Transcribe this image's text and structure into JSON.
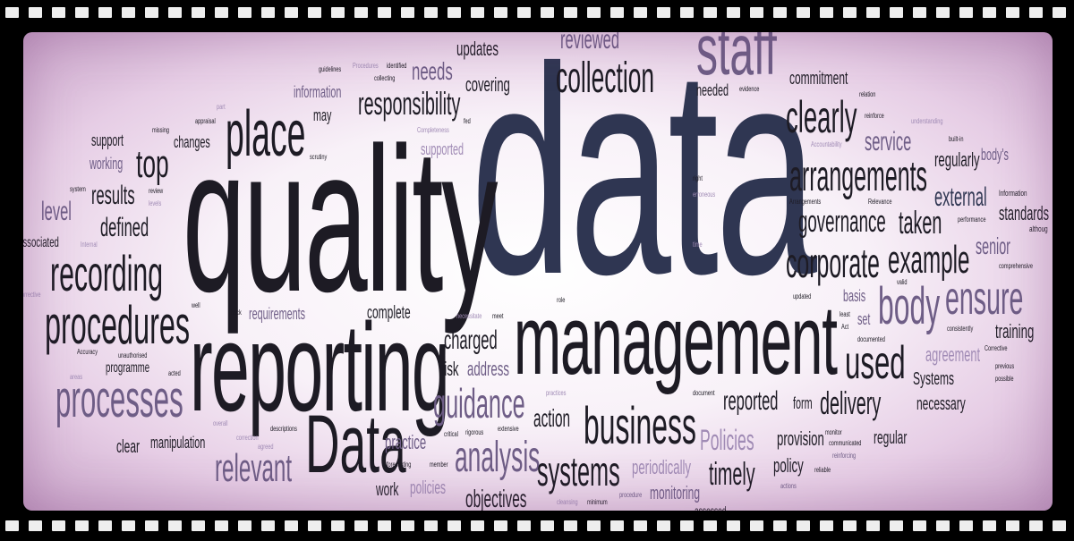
{
  "words": {
    "data": "data",
    "quality": "quality",
    "management": "management",
    "reporting": "reporting",
    "Data": "Data",
    "staff": "staff",
    "collection": "collection",
    "place": "place",
    "procedures": "procedures",
    "processes": "processes",
    "recording": "recording",
    "business": "business",
    "clearly": "clearly",
    "arrangements": "arrangements",
    "corporate": "corporate",
    "example": "example",
    "ensure": "ensure",
    "body": "body",
    "used": "used",
    "analysis": "analysis",
    "systems": "systems",
    "guidance": "guidance",
    "relevant": "relevant",
    "responsibility": "responsibility",
    "top": "top",
    "governance": "governance",
    "taken": "taken",
    "delivery": "delivery",
    "timely": "timely",
    "Policies": "Policies",
    "reviewed": "reviewed",
    "updates": "updates",
    "needs": "needs",
    "covering": "covering",
    "commitment": "commitment",
    "service": "service",
    "regularly": "regularly",
    "external": "external",
    "senior": "senior",
    "standards": "standards",
    "defined": "defined",
    "results": "results",
    "level": "level",
    "charged": "charged",
    "action": "action",
    "reported": "reported",
    "training": "training",
    "agreement": "agreement",
    "Systems": "Systems",
    "necessary": "necessary",
    "regular": "regular",
    "provision": "provision",
    "policy": "policy",
    "monitoring": "monitoring",
    "periodically": "periodically",
    "objectives": "objectives",
    "work": "work",
    "policies": "policies",
    "practice": "practice",
    "risk": "risk",
    "address": "address",
    "complete": "complete",
    "requirements": "requirements",
    "clear": "clear",
    "manipulation": "manipulation",
    "programme": "programme",
    "changes": "changes",
    "support": "support",
    "working": "working",
    "information": "information",
    "may": "may",
    "supported": "supported",
    "needed": "needed",
    "form": "form",
    "basis": "basis",
    "set": "set",
    "associated": "associated",
    "body's": "body's",
    "Information": "Information",
    "performance": "performance",
    "comprehensive": "comprehensive",
    "consistently": "consistently",
    "Corrective": "Corrective",
    "previous": "previous",
    "possible": "possible",
    "evidence": "evidence",
    "guidelines": "guidelines",
    "Procedures": "Procedures",
    "identified": "identified",
    "collecting": "collecting",
    "appraisal": "appraisal",
    "missing": "missing",
    "Completeness": "Completeness",
    "scrutiny": "scrutiny",
    "review": "review",
    "levels": "levels",
    "system": "system",
    "Internal": "Internal",
    "Corrective_left": "orrective",
    "well": "well",
    "back": "back",
    "Accuracy": "Accuracy",
    "unauthorised": "unauthorised",
    "acted": "acted",
    "areas": "areas",
    "overall": "overall",
    "descriptions": "descriptions",
    "correction": "correction",
    "agreed": "agreed",
    "forecasting": "forecasting",
    "member": "member",
    "critical": "critical",
    "rigorous": "rigorous",
    "extensive": "extensive",
    "cleansing": "cleansing",
    "minimum": "minimum",
    "procedure": "procedure",
    "practices": "practices",
    "document": "document",
    "necessitate": "necessitate",
    "meet": "meet",
    "role": "role",
    "right": "right",
    "erroneous": "erroneous",
    "time": "time",
    "Arrangements": "Arrangements",
    "Relevance": "Relevance",
    "updated": "updated",
    "least": "least",
    "Act": "Act",
    "documented": "documented",
    "valid": "valid",
    "relation": "relation",
    "reinforce": "reinforce",
    "understanding": "understanding",
    "Accountability": "Accountability",
    "built-in": "built-in",
    "communicated": "communicated",
    "reinforcing": "reinforcing",
    "reliable": "reliable",
    "monitor": "monitor",
    "actions": "actions",
    "part": "part",
    "fed": "fed",
    "although": "althoug",
    "assessed": "assessed"
  }
}
